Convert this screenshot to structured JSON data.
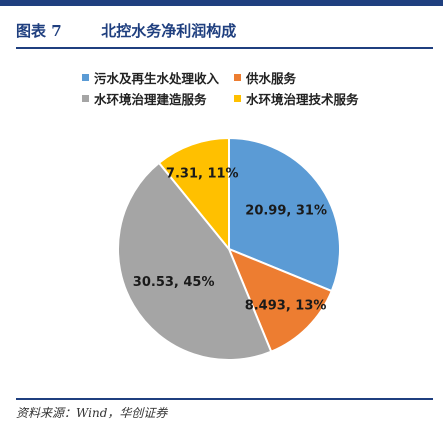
{
  "figure": {
    "label": "图表 7",
    "title": "北控水务净利润构成"
  },
  "source": "资料来源：Wind，华创证券",
  "colors": {
    "brand": "#1f3f7f"
  },
  "chart_data": {
    "type": "pie",
    "title": "北控水务净利润构成",
    "legend_position": "top",
    "series": [
      {
        "name": "污水及再生水处理收入",
        "value": 20.99,
        "percent": 31,
        "label": "20.99, 31%",
        "color": "#5b9bd5"
      },
      {
        "name": "供水服务",
        "value": 8.493,
        "percent": 13,
        "label": "8.493, 13%",
        "color": "#ed7d31"
      },
      {
        "name": "水环境治理建造服务",
        "value": 30.53,
        "percent": 45,
        "label": "30.53, 45%",
        "color": "#a5a5a5"
      },
      {
        "name": "水环境治理技术服务",
        "value": 7.31,
        "percent": 11,
        "label": "7.31, 11%",
        "color": "#ffc000"
      }
    ]
  }
}
